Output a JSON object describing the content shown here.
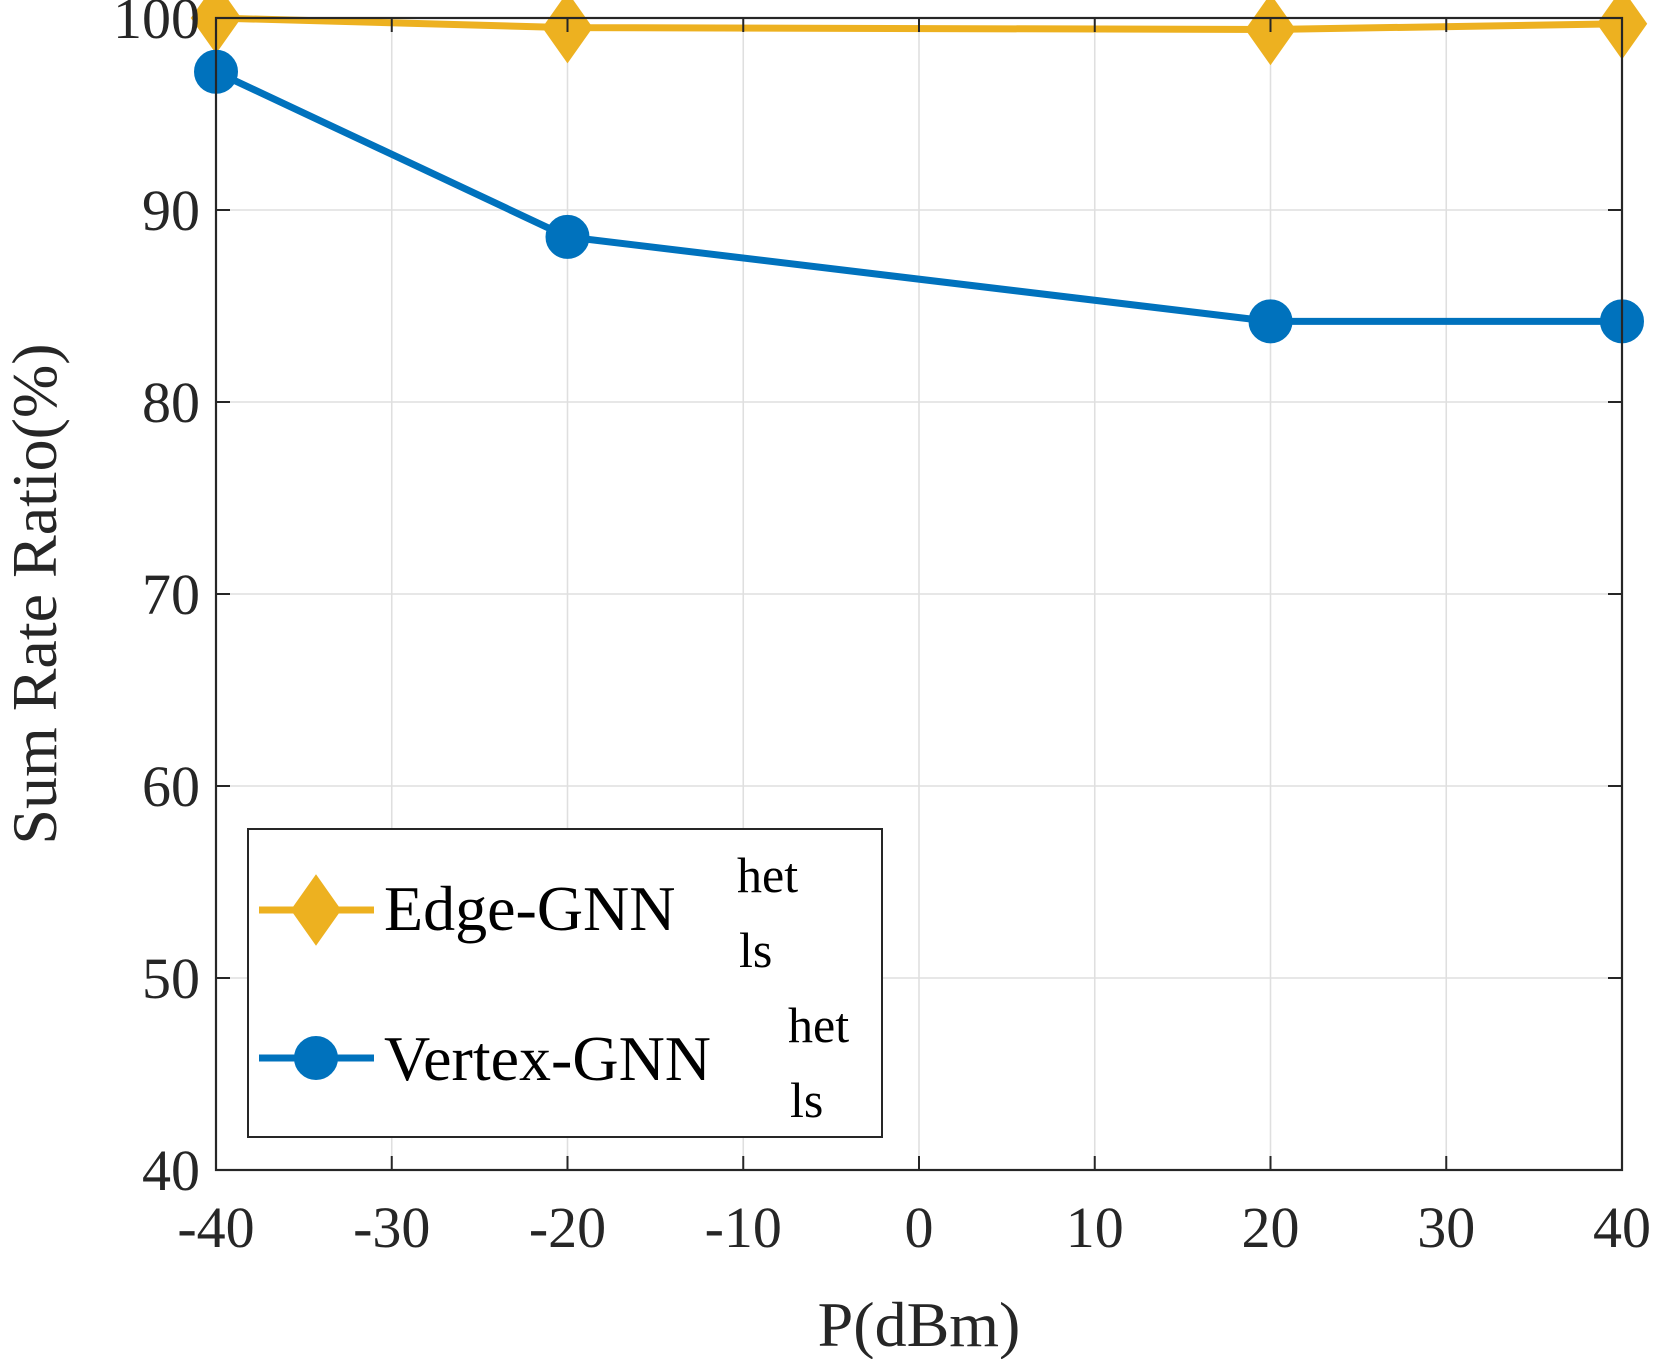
{
  "chart_data": {
    "type": "line",
    "title": "",
    "xlabel": "P(dBm)",
    "ylabel": "Sum Rate Ratio(%)",
    "xlim": [
      -40,
      40
    ],
    "ylim": [
      40,
      100
    ],
    "xticks": [
      -40,
      -30,
      -20,
      -10,
      0,
      10,
      20,
      30,
      40
    ],
    "yticks": [
      40,
      50,
      60,
      70,
      80,
      90,
      100
    ],
    "xtick_labels": [
      "-40",
      "-30",
      "-20",
      "-10",
      "0",
      "10",
      "20",
      "30",
      "40"
    ],
    "ytick_labels": [
      "40",
      "50",
      "60",
      "70",
      "80",
      "90",
      "100"
    ],
    "grid": true,
    "legend_position": "lower-left",
    "series": [
      {
        "name": "Edge-GNN",
        "superscript": "het",
        "subscript": "ls",
        "color": "#EDB120",
        "marker": "diamond",
        "x": [
          -40,
          -20,
          20,
          40
        ],
        "y": [
          100.0,
          99.5,
          99.4,
          99.7
        ]
      },
      {
        "name": "Vertex-GNN",
        "superscript": "het",
        "subscript": "ls",
        "color": "#0072BD",
        "marker": "circle",
        "x": [
          -40,
          -20,
          20,
          40
        ],
        "y": [
          97.2,
          88.6,
          84.2,
          84.2
        ]
      }
    ]
  }
}
